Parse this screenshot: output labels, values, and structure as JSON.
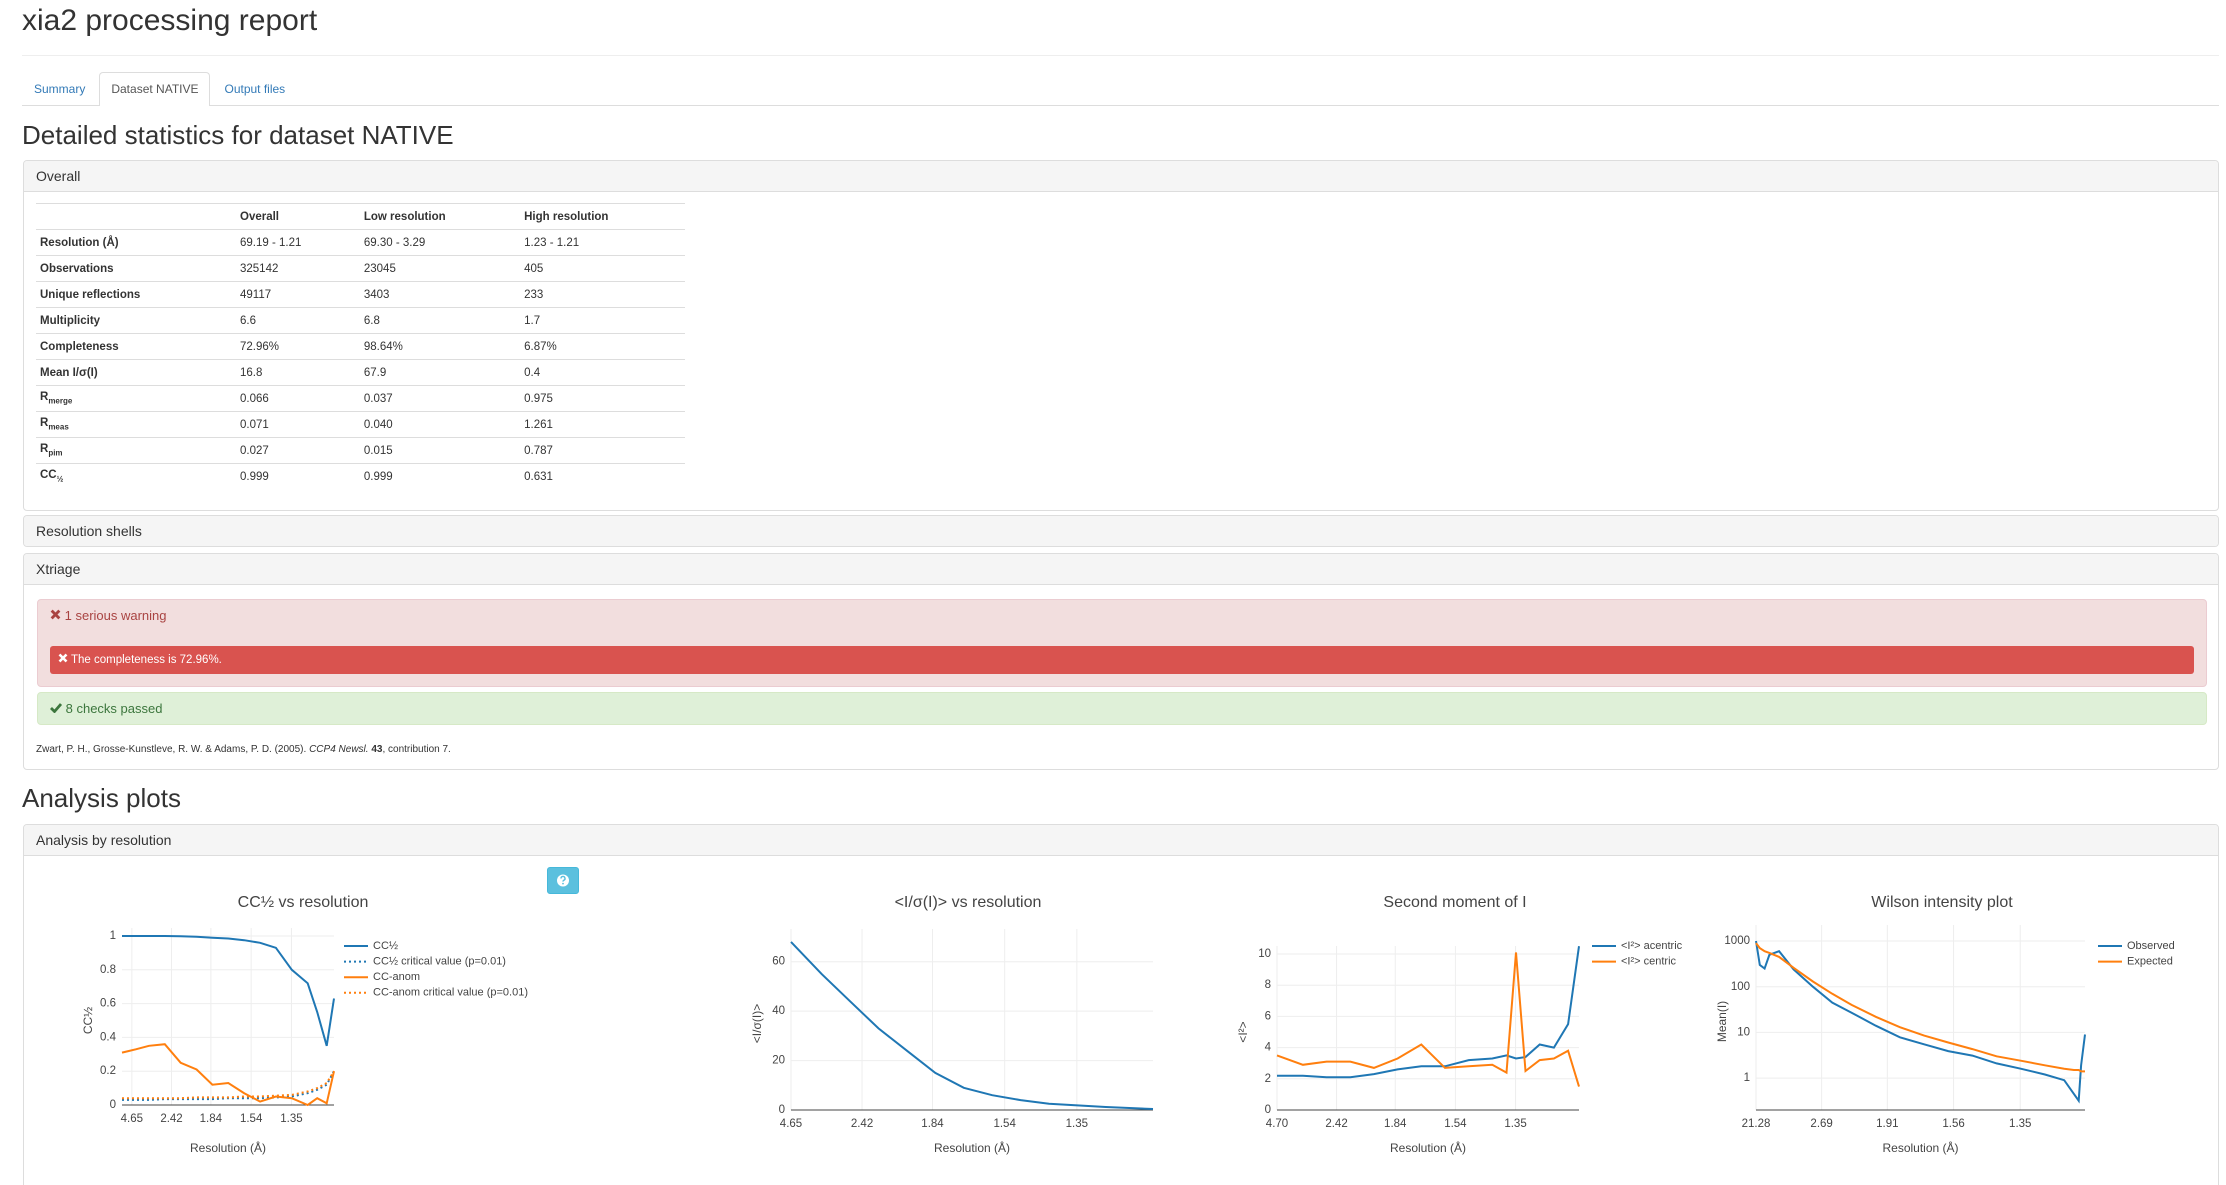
{
  "header": {
    "title": "xia2 processing report"
  },
  "tabs": [
    "Summary",
    "Dataset NATIVE",
    "Output files"
  ],
  "active_tab": 1,
  "section_title": "Detailed statistics for dataset NATIVE",
  "overall": {
    "heading": "Overall",
    "columns": [
      "Overall",
      "Low resolution",
      "High resolution"
    ],
    "rows": [
      {
        "label": {
          "text": "Resolution (Å)"
        },
        "cells": [
          "69.19 - 1.21",
          "69.30 - 3.29",
          "1.23 - 1.21"
        ]
      },
      {
        "label": {
          "text": "Observations"
        },
        "cells": [
          "325142",
          "23045",
          "405"
        ]
      },
      {
        "label": {
          "text": "Unique reflections"
        },
        "cells": [
          "49117",
          "3403",
          "233"
        ]
      },
      {
        "label": {
          "text": "Multiplicity"
        },
        "cells": [
          "6.6",
          "6.8",
          "1.7"
        ]
      },
      {
        "label": {
          "text": "Completeness"
        },
        "cells": [
          "72.96%",
          "98.64%",
          "6.87%"
        ]
      },
      {
        "label": {
          "text": "Mean I/σ(I)"
        },
        "cells": [
          "16.8",
          "67.9",
          "0.4"
        ]
      },
      {
        "label": {
          "text": "R",
          "sub": "merge"
        },
        "cells": [
          "0.066",
          "0.037",
          "0.975"
        ]
      },
      {
        "label": {
          "text": "R",
          "sub": "meas"
        },
        "cells": [
          "0.071",
          "0.040",
          "1.261"
        ]
      },
      {
        "label": {
          "text": "R",
          "sub": "pim"
        },
        "cells": [
          "0.027",
          "0.015",
          "0.787"
        ]
      },
      {
        "label": {
          "text": "CC",
          "sub": "½"
        },
        "cells": [
          "0.999",
          "0.999",
          "0.631"
        ]
      }
    ]
  },
  "resolution_shells": {
    "heading": "Resolution shells"
  },
  "xtriage": {
    "heading": "Xtriage",
    "warning_summary": "1 serious warning",
    "warnings": [
      "The completeness is 72.96%."
    ],
    "passed": "8 checks passed",
    "citation": {
      "authors": "Zwart, P. H., Grosse-Kunstleve, R. W. & Adams, P. D. (2005).",
      "journal": "CCP4 Newsl.",
      "volume": "43",
      "rest": ", contribution 7."
    }
  },
  "analysis_title": "Analysis plots",
  "analysis": {
    "heading": "Analysis by resolution",
    "plots": [
      {
        "title": "CC½ vs resolution",
        "xlabel": "Resolution (Å)",
        "ylabel": "CC½",
        "xlim": [
          0.015,
          0.683
        ],
        "ylim": [
          0,
          1
        ],
        "xticks": [
          {
            "value": 0.046,
            "label": "4.65"
          },
          {
            "value": 0.171,
            "label": "2.42"
          },
          {
            "value": 0.295,
            "label": "1.84"
          },
          {
            "value": 0.422,
            "label": "1.54"
          },
          {
            "value": 0.549,
            "label": "1.35"
          }
        ],
        "yticks": [
          0,
          0.2,
          0.4,
          0.6,
          0.8,
          1
        ],
        "x": [
          0.015,
          0.06,
          0.1,
          0.15,
          0.2,
          0.25,
          0.3,
          0.35,
          0.4,
          0.45,
          0.5,
          0.55,
          0.6,
          0.63,
          0.66,
          0.683
        ],
        "series": [
          {
            "name": "CC½",
            "color": "#1f77b4",
            "values": [
              1,
              1,
              1,
              1,
              0.998,
              0.995,
              0.99,
              0.985,
              0.975,
              0.96,
              0.93,
              0.8,
              0.72,
              0.55,
              0.35,
              0.63
            ]
          },
          {
            "name": "CC½ critical value (p=0.01)",
            "color": "#1f77b4",
            "dash": true,
            "values": [
              0.03,
              0.03,
              0.03,
              0.035,
              0.035,
              0.035,
              0.035,
              0.04,
              0.04,
              0.04,
              0.045,
              0.05,
              0.07,
              0.09,
              0.12,
              0.2
            ]
          },
          {
            "name": "CC-anom",
            "color": "#ff7f0e",
            "values": [
              0.31,
              0.33,
              0.35,
              0.36,
              0.25,
              0.21,
              0.12,
              0.13,
              0.07,
              0.02,
              0.05,
              0.04,
              0,
              0.04,
              0.01,
              0.2
            ]
          },
          {
            "name": "CC-anom critical value (p=0.01)",
            "color": "#ff7f0e",
            "dash": true,
            "values": [
              0.04,
              0.04,
              0.04,
              0.04,
              0.04,
              0.045,
              0.045,
              0.045,
              0.05,
              0.05,
              0.055,
              0.06,
              0.08,
              0.1,
              0.13,
              0.2
            ]
          }
        ]
      },
      {
        "title": "<I/σ(I)> vs resolution",
        "xlabel": "Resolution (Å)",
        "ylabel": "<I/σ(I)>",
        "xlim": [
          0.046,
          0.683
        ],
        "ylim": [
          0,
          70
        ],
        "xticks": [
          {
            "value": 0.046,
            "label": "4.65"
          },
          {
            "value": 0.171,
            "label": "2.42"
          },
          {
            "value": 0.295,
            "label": "1.84"
          },
          {
            "value": 0.422,
            "label": "1.54"
          },
          {
            "value": 0.549,
            "label": "1.35"
          }
        ],
        "yticks": [
          0,
          20,
          40,
          60
        ],
        "x": [
          0.046,
          0.1,
          0.15,
          0.2,
          0.25,
          0.3,
          0.35,
          0.4,
          0.45,
          0.5,
          0.6,
          0.683
        ],
        "series": [
          {
            "color": "#1f77b4",
            "values": [
              68,
              55,
              44,
              33,
              24,
              15,
              9,
              6,
              4,
              2.5,
              1.2,
              0.4
            ]
          }
        ]
      },
      {
        "title": "Second moment of I",
        "xlabel": "Resolution (Å)",
        "ylabel": "<I²>",
        "xlim": [
          0.0453,
          0.683
        ],
        "ylim": [
          0,
          10
        ],
        "xticks": [
          {
            "value": 0.0453,
            "label": "4.70"
          },
          {
            "value": 0.171,
            "label": "2.42"
          },
          {
            "value": 0.295,
            "label": "1.84"
          },
          {
            "value": 0.422,
            "label": "1.54"
          },
          {
            "value": 0.549,
            "label": "1.35"
          }
        ],
        "yticks": [
          0,
          2,
          4,
          6,
          8,
          10
        ],
        "x": [
          0.0453,
          0.1,
          0.15,
          0.2,
          0.25,
          0.3,
          0.35,
          0.4,
          0.45,
          0.5,
          0.53,
          0.55,
          0.57,
          0.6,
          0.63,
          0.66,
          0.683
        ],
        "series": [
          {
            "name": "<I²> acentric",
            "color": "#1f77b4",
            "values": [
              2.2,
              2.2,
              2.1,
              2.1,
              2.3,
              2.6,
              2.8,
              2.8,
              3.2,
              3.3,
              3.5,
              3.3,
              3.4,
              4.2,
              4.0,
              5.5,
              10.5
            ]
          },
          {
            "name": "<I²> centric",
            "color": "#ff7f0e",
            "values": [
              3.5,
              2.9,
              3.1,
              3.1,
              2.7,
              3.3,
              4.2,
              2.7,
              2.8,
              2.9,
              2.4,
              10.1,
              2.5,
              3.2,
              3.3,
              3.8,
              1.5
            ]
          }
        ]
      },
      {
        "title": "Wilson intensity plot",
        "xlabel": "Resolution (Å)",
        "ylabel": "Mean(I)",
        "log_y": true,
        "xlim": [
          0.0022,
          0.683
        ],
        "ylim": [
          0.2,
          1500
        ],
        "xticks": [
          {
            "value": 0.0022,
            "label": "21.28"
          },
          {
            "value": 0.138,
            "label": "2.69"
          },
          {
            "value": 0.274,
            "label": "1.91"
          },
          {
            "value": 0.411,
            "label": "1.56"
          },
          {
            "value": 0.549,
            "label": "1.35"
          }
        ],
        "yticks": [
          1,
          10,
          100,
          1000
        ],
        "x": [
          0.0022,
          0.01,
          0.02,
          0.03,
          0.05,
          0.08,
          0.12,
          0.16,
          0.2,
          0.25,
          0.3,
          0.35,
          0.4,
          0.45,
          0.5,
          0.55,
          0.6,
          0.64,
          0.66,
          0.67,
          0.675,
          0.683
        ],
        "series": [
          {
            "name": "Observed",
            "color": "#1f77b4",
            "values": [
              1000,
              300,
              250,
              500,
              600,
              240,
              100,
              45,
              27,
              14,
              7.8,
              5.5,
              3.9,
              3.1,
              2.1,
              1.6,
              1.2,
              0.9,
              0.45,
              0.32,
              1.9,
              9
            ]
          },
          {
            "name": "Expected",
            "color": "#ff7f0e",
            "values": [
              900,
              700,
              600,
              550,
              450,
              260,
              130,
              70,
              40,
              22,
              13,
              8.5,
              6,
              4.3,
              3,
              2.4,
              1.9,
              1.6,
              1.5,
              1.5,
              1.4,
              1.4
            ]
          }
        ]
      }
    ]
  }
}
